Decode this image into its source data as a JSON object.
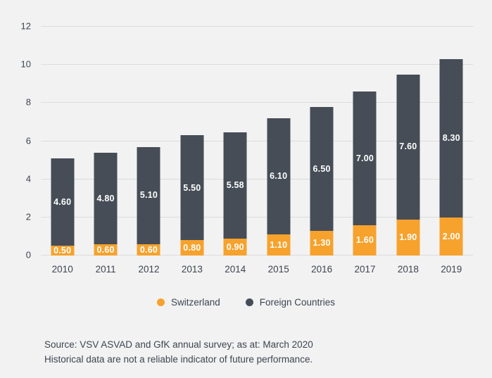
{
  "colors": {
    "background": "#f2f2f2",
    "switzerland": "#F6A22D",
    "foreign_countries": "#464D57",
    "axis_text": "#3d4450",
    "gridline": "#dcdcdc",
    "value_label": "#ffffff"
  },
  "chart_data": {
    "type": "bar",
    "stacked": true,
    "title": "",
    "xlabel": "",
    "ylabel": "",
    "categories": [
      "2010",
      "2011",
      "2012",
      "2013",
      "2014",
      "2015",
      "2016",
      "2017",
      "2018",
      "2019"
    ],
    "series": [
      {
        "name": "Switzerland",
        "color": "#F6A22D",
        "values": [
          0.5,
          0.6,
          0.6,
          0.8,
          0.9,
          1.1,
          1.3,
          1.6,
          1.9,
          2.0
        ]
      },
      {
        "name": "Foreign Countries",
        "color": "#464D57",
        "values": [
          4.6,
          4.8,
          5.1,
          5.5,
          5.58,
          6.1,
          6.5,
          7.0,
          7.6,
          8.3
        ]
      }
    ],
    "value_label_decimals": 2,
    "ylim": [
      0,
      12
    ],
    "yticks": [
      0,
      2,
      4,
      6,
      8,
      10,
      12
    ],
    "grid": true,
    "legend_position": "bottom"
  },
  "legend": {
    "items": [
      {
        "label": "Switzerland",
        "color": "#F6A22D"
      },
      {
        "label": "Foreign Countries",
        "color": "#464D57"
      }
    ]
  },
  "footer": {
    "source_line": "Source: VSV ASVAD and GfK annual survey; as at: March 2020",
    "disclaimer_line": "Historical data are not a reliable indicator of future performance."
  }
}
